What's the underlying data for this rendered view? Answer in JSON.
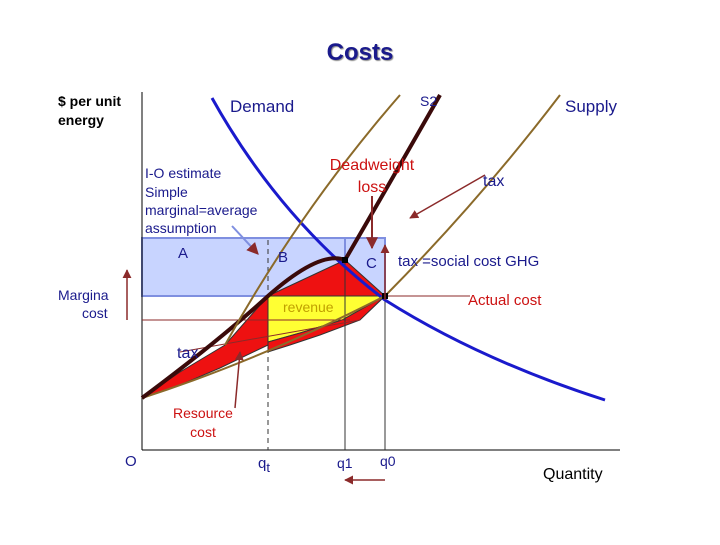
{
  "title": "Costs",
  "labels": {
    "y_unit_line1": "$ per unit",
    "y_unit_line2": "energy",
    "demand": "Demand",
    "s2": "S2",
    "supply": "Supply",
    "io_estimate": "I-O estimate",
    "simple_line1": "Simple",
    "simple_line2": "marginal=average",
    "simple_line3": "assumption",
    "deadweight_line1": "Deadweight",
    "deadweight_line2": "loss",
    "tax_top": "tax",
    "area_a": "A",
    "area_b": "B",
    "area_c": "C",
    "tax_social": "tax =social cost GHG",
    "marginal_line1": "Margina",
    "marginal_line2": "cost",
    "revenue": "revenue",
    "actual_cost": "Actual cost",
    "tax_left": "tax",
    "resource_line1": "Resource",
    "resource_line2": "cost",
    "origin": "O",
    "qt_main": "q",
    "qt_sub": "t",
    "q1": "q1",
    "q0": "q0",
    "x_axis": "Quantity"
  },
  "colors": {
    "title": "#1a1a8c",
    "demand": "#1a1acc",
    "supply": "#8b6a2a",
    "s2": "#3a0a0a",
    "red_area": "#ee1111",
    "yellow_area": "#ffff33",
    "blue_box": "#c8d4ff",
    "blue_box_stroke": "#7f8fe0",
    "guide_line": "#8b2a2a"
  }
}
